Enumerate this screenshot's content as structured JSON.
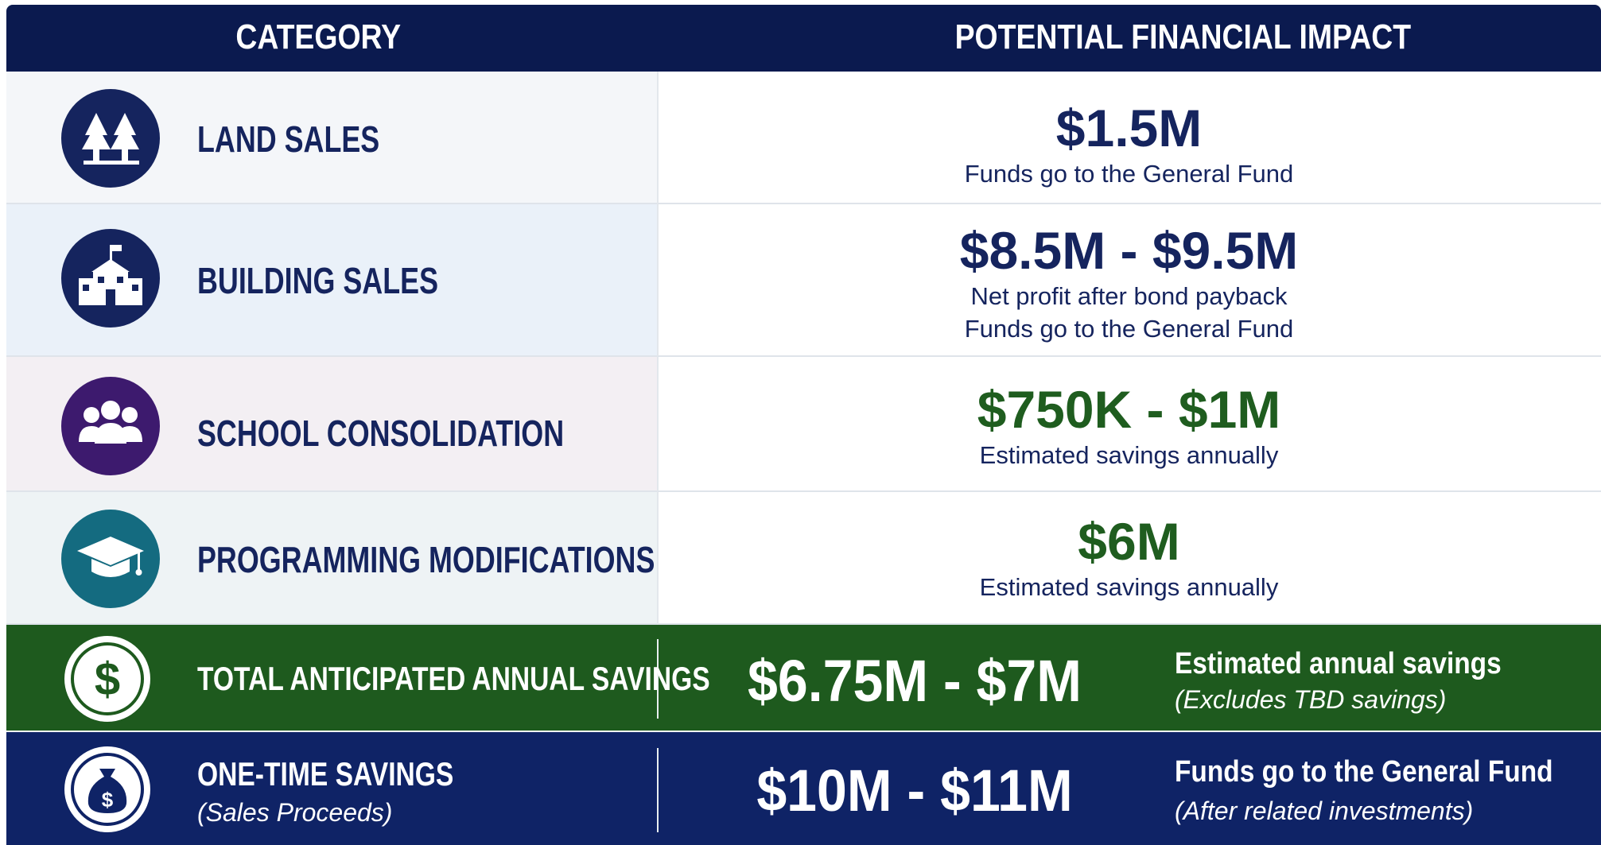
{
  "header": {
    "category": "CATEGORY",
    "impact": "POTENTIAL FINANCIAL IMPACT"
  },
  "rows": [
    {
      "category": "LAND SALES",
      "amount": "$1.5M",
      "notes": [
        "Funds go to the General Fund"
      ]
    },
    {
      "category": "BUILDING SALES",
      "amount": "$8.5M - $9.5M",
      "notes": [
        "Net profit after bond payback",
        "Funds go to the General Fund"
      ]
    },
    {
      "category": "SCHOOL CONSOLIDATION",
      "amount": "$750K - $1M",
      "notes": [
        "Estimated savings annually"
      ]
    },
    {
      "category": "PROGRAMMING MODIFICATIONS",
      "amount": "$6M",
      "notes": [
        "Estimated savings annually"
      ]
    }
  ],
  "summary": [
    {
      "label": "TOTAL ANTICIPATED ANNUAL SAVINGS",
      "amount": "$6.75M - $7M",
      "description": "Estimated annual savings",
      "note": "(Excludes TBD savings)"
    },
    {
      "label": "ONE-TIME SAVINGS",
      "sublabel": "(Sales Proceeds)",
      "amount": "$10M - $11M",
      "description": "Funds go to the General Fund",
      "note": "(After related investments)"
    }
  ]
}
